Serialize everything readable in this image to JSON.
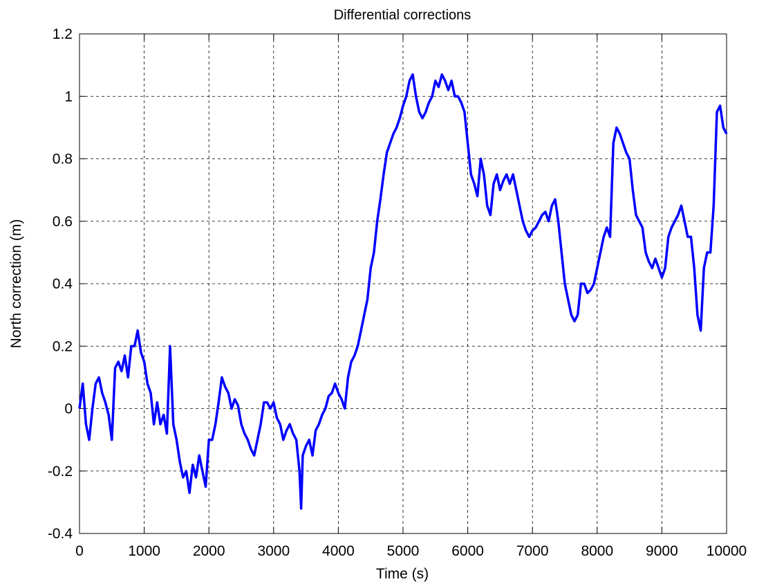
{
  "chart_data": {
    "type": "line",
    "title": "Differential corrections",
    "xlabel": "Time (s)",
    "ylabel": "North correction (m)",
    "x": [
      0,
      50,
      100,
      150,
      200,
      250,
      300,
      350,
      400,
      450,
      500,
      550,
      600,
      650,
      700,
      750,
      800,
      850,
      900,
      950,
      1000,
      1050,
      1100,
      1150,
      1200,
      1250,
      1300,
      1350,
      1400,
      1450,
      1500,
      1550,
      1600,
      1650,
      1700,
      1750,
      1800,
      1850,
      1900,
      1950,
      2000,
      2050,
      2100,
      2150,
      2200,
      2250,
      2300,
      2350,
      2400,
      2450,
      2500,
      2550,
      2600,
      2650,
      2700,
      2750,
      2800,
      2850,
      2900,
      2950,
      3000,
      3050,
      3100,
      3150,
      3200,
      3250,
      3300,
      3350,
      3400,
      3425,
      3450,
      3500,
      3550,
      3600,
      3650,
      3700,
      3750,
      3800,
      3850,
      3900,
      3950,
      4000,
      4050,
      4100,
      4150,
      4200,
      4250,
      4300,
      4350,
      4400,
      4450,
      4500,
      4550,
      4600,
      4650,
      4700,
      4750,
      4800,
      4850,
      4900,
      4950,
      5000,
      5050,
      5100,
      5150,
      5200,
      5250,
      5300,
      5350,
      5400,
      5450,
      5500,
      5550,
      5600,
      5650,
      5700,
      5750,
      5800,
      5850,
      5900,
      5950,
      6000,
      6050,
      6100,
      6150,
      6200,
      6250,
      6300,
      6350,
      6400,
      6450,
      6500,
      6550,
      6600,
      6650,
      6700,
      6750,
      6800,
      6850,
      6900,
      6950,
      7000,
      7050,
      7100,
      7150,
      7200,
      7250,
      7300,
      7350,
      7400,
      7450,
      7500,
      7550,
      7600,
      7650,
      7700,
      7750,
      7800,
      7850,
      7900,
      7950,
      8000,
      8050,
      8100,
      8150,
      8200,
      8250,
      8300,
      8350,
      8400,
      8450,
      8500,
      8550,
      8600,
      8650,
      8700,
      8750,
      8800,
      8850,
      8900,
      8950,
      9000,
      9050,
      9100,
      9150,
      9200,
      9250,
      9300,
      9350,
      9400,
      9450,
      9500,
      9550,
      9600,
      9650,
      9700,
      9750,
      9800,
      9850,
      9900,
      9950,
      10000
    ],
    "series": [
      {
        "name": "North correction",
        "color": "#0000ff",
        "values": [
          0.0,
          0.08,
          -0.05,
          -0.1,
          0.0,
          0.08,
          0.1,
          0.05,
          0.02,
          -0.02,
          -0.1,
          0.13,
          0.15,
          0.12,
          0.17,
          0.1,
          0.2,
          0.2,
          0.25,
          0.18,
          0.15,
          0.08,
          0.05,
          -0.05,
          0.02,
          -0.05,
          -0.02,
          -0.08,
          0.2,
          -0.05,
          -0.1,
          -0.17,
          -0.22,
          -0.2,
          -0.27,
          -0.18,
          -0.22,
          -0.15,
          -0.2,
          -0.25,
          -0.1,
          -0.1,
          -0.05,
          0.02,
          0.1,
          0.07,
          0.05,
          0.0,
          0.03,
          0.01,
          -0.05,
          -0.08,
          -0.1,
          -0.13,
          -0.15,
          -0.1,
          -0.05,
          0.02,
          0.02,
          0.0,
          0.02,
          -0.03,
          -0.05,
          -0.1,
          -0.07,
          -0.05,
          -0.08,
          -0.1,
          -0.2,
          -0.32,
          -0.15,
          -0.12,
          -0.1,
          -0.15,
          -0.07,
          -0.05,
          -0.02,
          0.0,
          0.04,
          0.05,
          0.08,
          0.05,
          0.03,
          0.0,
          0.1,
          0.15,
          0.17,
          0.2,
          0.25,
          0.3,
          0.35,
          0.45,
          0.5,
          0.6,
          0.67,
          0.75,
          0.82,
          0.85,
          0.88,
          0.9,
          0.93,
          0.97,
          1.0,
          1.05,
          1.07,
          1.0,
          0.95,
          0.93,
          0.95,
          0.98,
          1.0,
          1.05,
          1.03,
          1.07,
          1.05,
          1.02,
          1.05,
          1.0,
          1.0,
          0.98,
          0.95,
          0.85,
          0.75,
          0.72,
          0.68,
          0.8,
          0.75,
          0.65,
          0.62,
          0.72,
          0.75,
          0.7,
          0.73,
          0.75,
          0.72,
          0.75,
          0.7,
          0.65,
          0.6,
          0.57,
          0.55,
          0.57,
          0.58,
          0.6,
          0.62,
          0.63,
          0.6,
          0.65,
          0.67,
          0.6,
          0.5,
          0.4,
          0.35,
          0.3,
          0.28,
          0.3,
          0.4,
          0.4,
          0.37,
          0.38,
          0.4,
          0.45,
          0.5,
          0.55,
          0.58,
          0.55,
          0.85,
          0.9,
          0.88,
          0.85,
          0.82,
          0.8,
          0.7,
          0.62,
          0.6,
          0.58,
          0.5,
          0.47,
          0.45,
          0.48,
          0.45,
          0.42,
          0.45,
          0.55,
          0.58,
          0.6,
          0.62,
          0.65,
          0.6,
          0.55,
          0.55,
          0.45,
          0.3,
          0.25,
          0.45,
          0.5,
          0.5,
          0.65,
          0.95,
          0.97,
          0.9,
          0.88
        ]
      }
    ],
    "xlim": [
      0,
      10000
    ],
    "xticks": [
      0,
      1000,
      2000,
      3000,
      4000,
      5000,
      6000,
      7000,
      8000,
      9000,
      10000
    ],
    "ylim": [
      -0.4,
      1.2
    ],
    "yticks": [
      -0.4,
      -0.2,
      0,
      0.2,
      0.4,
      0.6,
      0.8,
      1,
      1.2
    ],
    "grid": true
  }
}
